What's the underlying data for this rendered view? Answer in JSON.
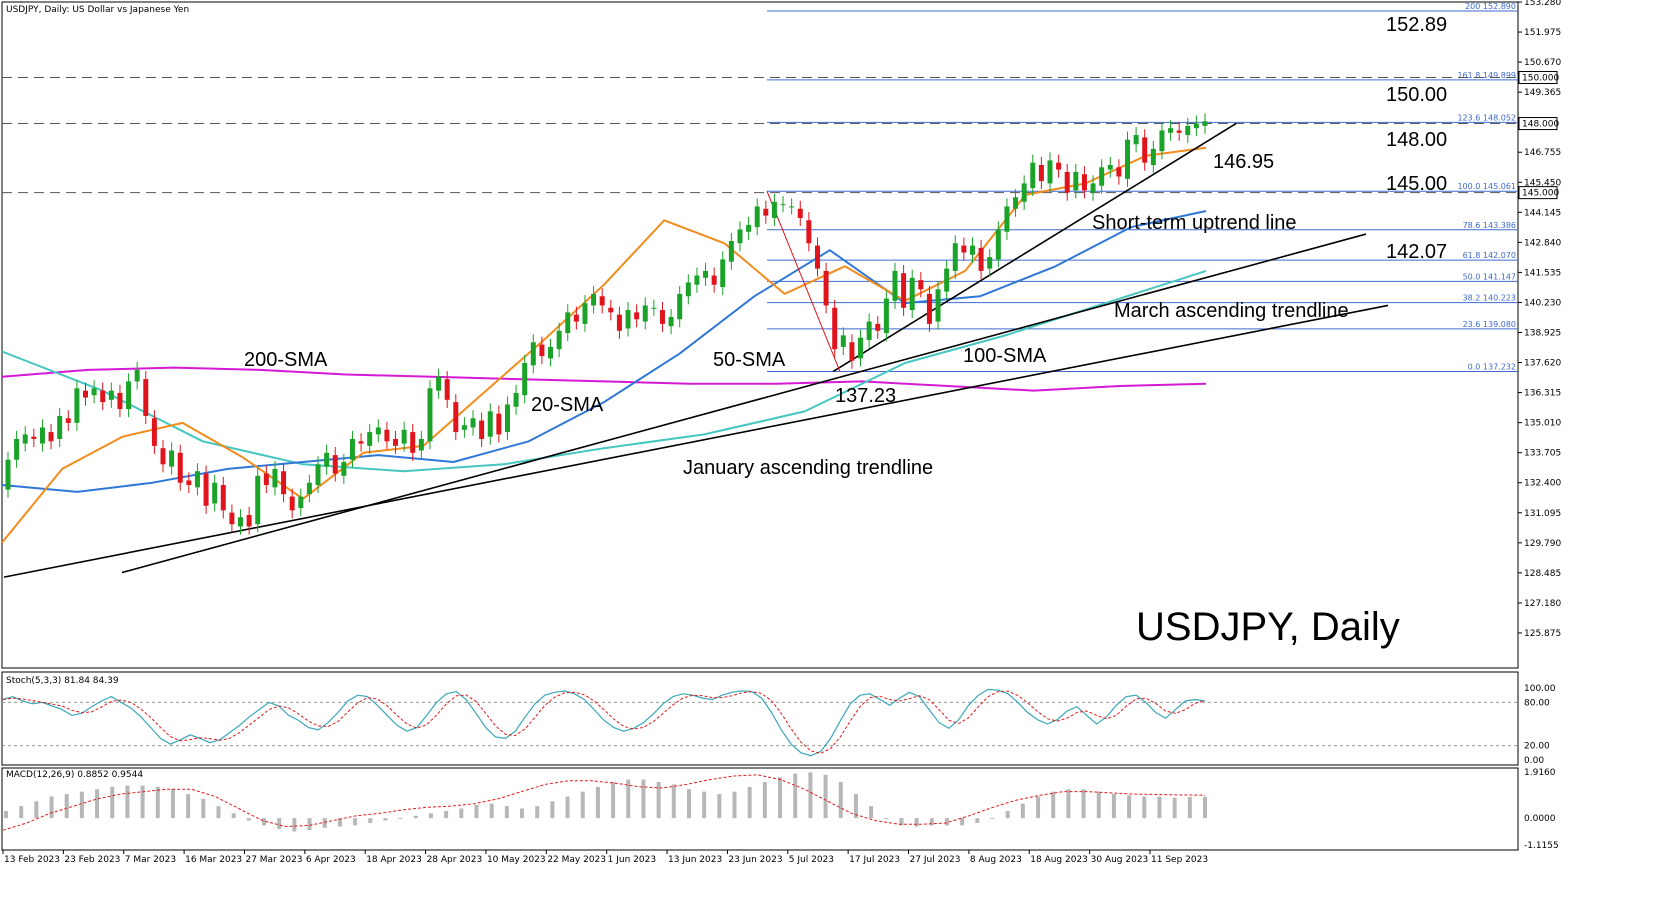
{
  "chart_data": [
    {
      "type": "candlestick",
      "title": "USDJPY, Daily",
      "header": "USDJPY, Daily:  US Dollar vs Japanese Yen",
      "x_tick_labels": [
        "13 Feb 2023",
        "23 Feb 2023",
        "7 Mar 2023",
        "16 Mar 2023",
        "27 Mar 2023",
        "6 Apr 2023",
        "18 Apr 2023",
        "28 Apr 2023",
        "10 May 2023",
        "22 May 2023",
        "1 Jun 2023",
        "13 Jun 2023",
        "23 Jun 2023",
        "5 Jul 2023",
        "17 Jul 2023",
        "27 Jul 2023",
        "8 Aug 2023",
        "18 Aug 2023",
        "30 Aug 2023",
        "11 Sep 2023"
      ],
      "y_tick_labels": [
        "153.280",
        "151.975",
        "150.670",
        "149.365",
        "146.755",
        "145.450",
        "144.145",
        "142.840",
        "141.535",
        "140.230",
        "138.925",
        "137.620",
        "136.315",
        "135.010",
        "133.705",
        "132.400",
        "131.095",
        "129.790",
        "128.485",
        "127.180",
        "125.875"
      ],
      "ylim": [
        124.7,
        153.28
      ],
      "price_tags": [
        "150.000",
        "148.000",
        "145.000"
      ],
      "fibonacci": [
        {
          "label": "200  152.890",
          "value": 152.89
        },
        {
          "label": "161.8  149.899",
          "value": 149.899
        },
        {
          "label": "123.6  148.052",
          "value": 148.052
        },
        {
          "label": "100.0  145.061",
          "value": 145.061
        },
        {
          "label": "78.6  143.386",
          "value": 143.386
        },
        {
          "label": "61.8  142.070",
          "value": 142.07
        },
        {
          "label": "50.0  141.147",
          "value": 141.147
        },
        {
          "label": "38.2  140.223",
          "value": 140.223
        },
        {
          "label": "23.6  139.080",
          "value": 139.08
        },
        {
          "label": "0.0  137.232",
          "value": 137.232
        }
      ],
      "levels": [
        {
          "label": "152.89",
          "value": 152.89
        },
        {
          "label": "150.00",
          "value": 150.0
        },
        {
          "label": "148.00",
          "value": 148.0
        },
        {
          "label": "145.00",
          "value": 145.0
        },
        {
          "label": "142.07",
          "value": 142.07
        },
        {
          "label": "146.95",
          "value": 146.95
        },
        {
          "label": "137.23",
          "value": 137.23
        }
      ],
      "annotations": [
        "200-SMA",
        "20-SMA",
        "50-SMA",
        "100-SMA",
        "January ascending trendline",
        "March ascending trendline",
        "Short-term uptrend line"
      ],
      "candles": [
        [
          132.1,
          133.4
        ],
        [
          133.4,
          134.3
        ],
        [
          134.1,
          134.5
        ],
        [
          134.4,
          134.3
        ],
        [
          134.1,
          134.8
        ],
        [
          134.6,
          134.2
        ],
        [
          134.3,
          135.3
        ],
        [
          135.2,
          135.0
        ],
        [
          135.0,
          136.5
        ],
        [
          136.4,
          136.1
        ],
        [
          136.2,
          136.5
        ],
        [
          136.4,
          135.9
        ],
        [
          136.0,
          136.4
        ],
        [
          136.3,
          135.6
        ],
        [
          135.6,
          136.8
        ],
        [
          136.8,
          137.3
        ],
        [
          136.9,
          135.3
        ],
        [
          135.2,
          134.0
        ],
        [
          133.9,
          133.2
        ],
        [
          133.1,
          133.8
        ],
        [
          133.7,
          132.4
        ],
        [
          132.5,
          132.3
        ],
        [
          132.2,
          132.9
        ],
        [
          132.8,
          131.4
        ],
        [
          131.5,
          132.4
        ],
        [
          132.3,
          131.2
        ],
        [
          131.1,
          130.6
        ],
        [
          130.5,
          130.9
        ],
        [
          131.0,
          130.5
        ],
        [
          130.6,
          132.7
        ],
        [
          132.8,
          132.3
        ],
        [
          132.2,
          133.0
        ],
        [
          132.9,
          131.9
        ],
        [
          131.8,
          131.2
        ],
        [
          131.3,
          131.8
        ],
        [
          131.9,
          132.4
        ],
        [
          132.3,
          133.2
        ],
        [
          133.1,
          133.7
        ],
        [
          133.6,
          132.8
        ],
        [
          132.7,
          133.3
        ],
        [
          133.4,
          134.3
        ],
        [
          134.2,
          134.1
        ],
        [
          134.0,
          134.6
        ],
        [
          134.5,
          134.8
        ],
        [
          134.7,
          134.2
        ],
        [
          134.3,
          134.0
        ],
        [
          134.1,
          134.7
        ],
        [
          134.6,
          133.7
        ],
        [
          133.8,
          134.3
        ],
        [
          134.2,
          136.5
        ],
        [
          136.4,
          137.0
        ],
        [
          136.9,
          136.0
        ],
        [
          135.9,
          134.6
        ],
        [
          134.7,
          134.9
        ],
        [
          134.8,
          135.2
        ],
        [
          135.1,
          134.3
        ],
        [
          134.4,
          135.5
        ],
        [
          135.4,
          134.5
        ],
        [
          134.6,
          135.8
        ],
        [
          135.7,
          136.3
        ],
        [
          136.2,
          137.6
        ],
        [
          137.5,
          138.5
        ],
        [
          138.4,
          137.9
        ],
        [
          137.8,
          138.3
        ],
        [
          138.2,
          139.0
        ],
        [
          138.9,
          139.8
        ],
        [
          139.7,
          139.4
        ],
        [
          139.3,
          140.2
        ],
        [
          140.1,
          140.6
        ],
        [
          140.5,
          140.1
        ],
        [
          140.0,
          139.8
        ],
        [
          139.7,
          139.0
        ],
        [
          139.1,
          139.9
        ],
        [
          139.8,
          139.5
        ],
        [
          139.4,
          140.1
        ],
        [
          140.0,
          140.0
        ],
        [
          139.9,
          139.3
        ],
        [
          139.2,
          139.6
        ],
        [
          139.5,
          140.6
        ],
        [
          140.5,
          141.1
        ],
        [
          141.0,
          141.4
        ],
        [
          141.3,
          141.6
        ],
        [
          141.4,
          141.0
        ],
        [
          140.9,
          142.1
        ],
        [
          142.0,
          142.9
        ],
        [
          142.8,
          143.4
        ],
        [
          143.3,
          143.6
        ],
        [
          143.5,
          144.4
        ],
        [
          144.3,
          144.0
        ],
        [
          143.9,
          144.6
        ],
        [
          144.5,
          144.5
        ],
        [
          144.4,
          144.4
        ],
        [
          144.3,
          143.9
        ],
        [
          143.8,
          142.8
        ],
        [
          142.7,
          141.7
        ],
        [
          141.6,
          140.1
        ],
        [
          140.0,
          138.2
        ],
        [
          138.3,
          138.8
        ],
        [
          138.5,
          137.7
        ],
        [
          137.8,
          138.7
        ],
        [
          138.6,
          139.4
        ],
        [
          139.3,
          139.0
        ],
        [
          138.9,
          140.4
        ],
        [
          140.3,
          141.6
        ],
        [
          141.5,
          140.0
        ],
        [
          139.9,
          141.3
        ],
        [
          141.2,
          140.8
        ],
        [
          140.6,
          139.3
        ],
        [
          139.4,
          140.8
        ],
        [
          140.7,
          141.7
        ],
        [
          141.6,
          142.8
        ],
        [
          142.7,
          142.4
        ],
        [
          142.3,
          142.7
        ],
        [
          142.6,
          141.6
        ],
        [
          141.7,
          142.2
        ],
        [
          142.1,
          143.4
        ],
        [
          143.3,
          144.4
        ],
        [
          144.3,
          144.8
        ],
        [
          144.6,
          145.4
        ],
        [
          145.2,
          146.3
        ],
        [
          146.2,
          145.5
        ],
        [
          145.4,
          146.4
        ],
        [
          146.3,
          146.0
        ],
        [
          145.9,
          145.0
        ],
        [
          145.1,
          145.9
        ],
        [
          145.8,
          145.1
        ],
        [
          145.0,
          145.4
        ],
        [
          145.3,
          146.1
        ],
        [
          146.0,
          146.2
        ],
        [
          146.1,
          145.7
        ],
        [
          145.6,
          147.3
        ],
        [
          147.1,
          147.5
        ],
        [
          147.4,
          146.3
        ],
        [
          146.2,
          146.9
        ],
        [
          146.8,
          147.7
        ],
        [
          147.6,
          147.8
        ],
        [
          147.7,
          147.6
        ],
        [
          147.5,
          147.9
        ],
        [
          147.8,
          148.0
        ],
        [
          147.9,
          148.1
        ]
      ],
      "sma_200": [
        137.0,
        137.3,
        137.4,
        137.3,
        137.1,
        137.0,
        136.9,
        136.8,
        136.7,
        136.7,
        136.8,
        136.6,
        136.4,
        136.6,
        136.7
      ],
      "sma_100": [
        138.1,
        136.4,
        134.2,
        133.2,
        132.9,
        133.2,
        133.9,
        134.5,
        135.5,
        137.6,
        138.8,
        140.2,
        141.6
      ],
      "sma_50": [
        132.3,
        132.0,
        132.4,
        133.0,
        133.3,
        133.6,
        133.3,
        134.2,
        135.9,
        138.0,
        140.5,
        142.5,
        140.2,
        140.5,
        141.8,
        143.5,
        144.2
      ],
      "sma_20": [
        129.8,
        133.0,
        134.4,
        135.0,
        133.5,
        131.7,
        133.7,
        134.0,
        136.3,
        138.6,
        141.0,
        143.8,
        142.8,
        140.6,
        141.8,
        140.3,
        141.6,
        144.9,
        145.4,
        146.6,
        146.95
      ],
      "trendlines": [
        {
          "label": "January ascending trendline",
          "from": [
            "start",
            128.3
          ],
          "to": [
            "end",
            140.1
          ]
        },
        {
          "label": "March ascending trendline",
          "from": [
            "start",
            128.5
          ],
          "to": [
            "end",
            143.2
          ]
        },
        {
          "label": "Short-term uptrend line",
          "from": [
            "Jul",
            137.23
          ],
          "to": [
            "Sep",
            148.0
          ]
        }
      ]
    },
    {
      "type": "line",
      "title": "Stoch(5,3,3) 81.84 84.39",
      "y_tick_labels": [
        "100.00",
        "80.00",
        "20.00",
        "0.00"
      ],
      "ylim": [
        0,
        100
      ],
      "k": [
        84,
        88,
        82,
        78,
        80,
        75,
        70,
        62,
        65,
        74,
        82,
        88,
        80,
        72,
        60,
        45,
        30,
        22,
        28,
        35,
        30,
        24,
        28,
        38,
        48,
        60,
        70,
        80,
        75,
        62,
        55,
        45,
        42,
        52,
        66,
        82,
        90,
        88,
        76,
        62,
        48,
        40,
        45,
        62,
        80,
        92,
        95,
        84,
        65,
        45,
        32,
        30,
        40,
        60,
        78,
        90,
        94,
        96,
        92,
        84,
        70,
        55,
        45,
        40,
        44,
        52,
        64,
        78,
        88,
        92,
        90,
        86,
        84,
        90,
        94,
        96,
        95,
        86,
        66,
        42,
        22,
        10,
        6,
        12,
        30,
        55,
        78,
        90,
        92,
        84,
        76,
        86,
        94,
        88,
        70,
        52,
        44,
        56,
        76,
        90,
        98,
        97,
        92,
        80,
        66,
        56,
        50,
        56,
        68,
        74,
        62,
        50,
        60,
        76,
        88,
        90,
        80,
        66,
        58,
        70,
        82,
        84,
        82
      ]
    },
    {
      "type": "bar",
      "title": "MACD(12,26,9) 0.8852 0.9544",
      "y_tick_labels": [
        "1.9160",
        "0.0000",
        "-1.1155"
      ],
      "ylim": [
        -1.1155,
        1.916
      ],
      "macd": [
        0.3,
        0.5,
        0.7,
        0.9,
        1.0,
        1.1,
        1.2,
        1.3,
        1.35,
        1.35,
        1.3,
        1.2,
        1.0,
        0.8,
        0.5,
        0.2,
        -0.1,
        -0.3,
        -0.45,
        -0.55,
        -0.5,
        -0.4,
        -0.35,
        -0.3,
        -0.2,
        -0.1,
        0.0,
        0.1,
        0.2,
        0.3,
        0.4,
        0.55,
        0.6,
        0.5,
        0.4,
        0.5,
        0.7,
        0.9,
        1.1,
        1.3,
        1.5,
        1.6,
        1.6,
        1.5,
        1.4,
        1.2,
        1.1,
        1.0,
        1.1,
        1.3,
        1.5,
        1.7,
        1.85,
        1.9,
        1.8,
        1.5,
        1.0,
        0.5,
        0.0,
        -0.3,
        -0.35,
        -0.3,
        -0.3,
        -0.3,
        -0.2,
        0.0,
        0.3,
        0.6,
        0.9,
        1.1,
        1.2,
        1.2,
        1.1,
        1.0,
        0.95,
        0.9,
        0.9,
        0.85,
        0.88,
        0.89
      ],
      "signal": [
        -0.5,
        -0.2,
        0.2,
        0.5,
        0.8,
        1.0,
        1.1,
        1.2,
        1.2,
        0.9,
        0.4,
        -0.1,
        -0.35,
        -0.3,
        -0.1,
        0.1,
        0.2,
        0.35,
        0.45,
        0.5,
        0.6,
        0.8,
        1.1,
        1.4,
        1.55,
        1.55,
        1.45,
        1.3,
        1.25,
        1.4,
        1.6,
        1.75,
        1.8,
        1.6,
        1.2,
        0.7,
        0.2,
        -0.1,
        -0.25,
        -0.25,
        -0.2,
        0.1,
        0.45,
        0.75,
        0.95,
        1.1,
        1.1,
        1.05,
        1.0,
        0.98,
        0.96,
        0.955
      ]
    }
  ],
  "colors": {
    "bull": "#1aa328",
    "bear": "#e0141c",
    "sma_20": "#f28c1c",
    "sma_50": "#2f78d8",
    "sma_100": "#45c6c0",
    "sma_200": "#d41ad6",
    "fib": "#3f6bd0",
    "macd_bar": "#b7b7b7",
    "signal": "#e31a1c",
    "stoch_k": "#3aa8b8"
  }
}
